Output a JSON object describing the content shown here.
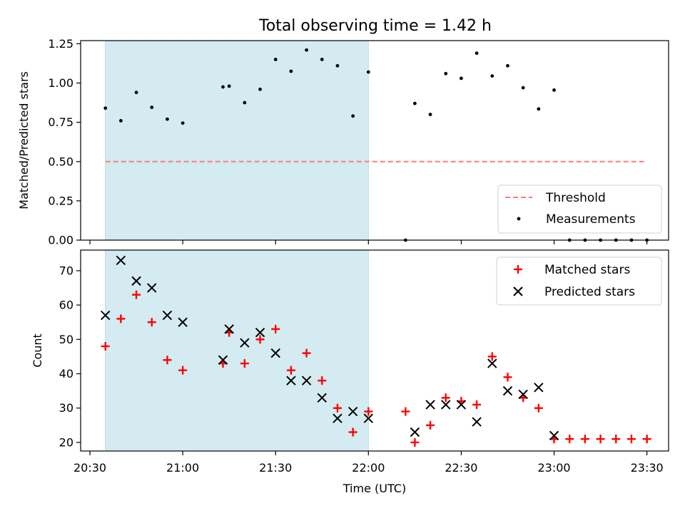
{
  "chart_data": [
    {
      "type": "scatter",
      "title": "Total observing time = 1.42 h",
      "xlabel": "",
      "ylabel": "Matched/Predicted stars",
      "xlim": [
        "20:27",
        "23:37"
      ],
      "ylim": [
        0,
        1.27
      ],
      "yticks": [
        0.0,
        0.25,
        0.5,
        0.75,
        1.0,
        1.25
      ],
      "yticklabels": [
        "0.00",
        "0.25",
        "0.50",
        "0.75",
        "1.00",
        "1.25"
      ],
      "shaded_region": {
        "x_start": "20:35",
        "x_end": "22:00",
        "color": "#d4ebf1"
      },
      "legend": {
        "position": "lower-right",
        "entries": [
          "Threshold",
          "Measurements"
        ]
      },
      "series": [
        {
          "name": "Threshold",
          "style": "dashed-line",
          "color": "#ff7b7b",
          "x": [
            "20:35",
            "23:30"
          ],
          "y": [
            0.5,
            0.5
          ]
        },
        {
          "name": "Measurements",
          "style": "dot",
          "color": "#000000",
          "x": [
            "20:35",
            "20:40",
            "20:45",
            "20:50",
            "20:55",
            "21:00",
            "21:13",
            "21:15",
            "21:20",
            "21:25",
            "21:30",
            "21:35",
            "21:40",
            "21:45",
            "21:50",
            "21:55",
            "22:00",
            "22:12",
            "22:15",
            "22:20",
            "22:25",
            "22:30",
            "22:35",
            "22:40",
            "22:45",
            "22:50",
            "22:55",
            "23:00",
            "23:05",
            "23:10",
            "23:15",
            "23:20",
            "23:25",
            "23:30"
          ],
          "y": [
            0.84,
            0.76,
            0.94,
            0.845,
            0.77,
            0.745,
            0.975,
            0.98,
            0.875,
            0.96,
            1.15,
            1.075,
            1.21,
            1.15,
            1.11,
            0.79,
            1.07,
            0.0,
            0.87,
            0.8,
            1.06,
            1.03,
            1.19,
            1.045,
            1.11,
            0.97,
            0.835,
            0.955,
            0.0,
            0.0,
            0.0,
            0.0,
            0.0,
            0.0
          ]
        }
      ]
    },
    {
      "type": "scatter",
      "title": "",
      "xlabel": "Time (UTC)",
      "ylabel": "Count",
      "xlim": [
        "20:27",
        "23:37"
      ],
      "ylim": [
        17.5,
        76
      ],
      "yticks": [
        20,
        30,
        40,
        50,
        60,
        70
      ],
      "yticklabels": [
        "20",
        "30",
        "40",
        "50",
        "60",
        "70"
      ],
      "xticks": [
        "20:30",
        "21:00",
        "21:30",
        "22:00",
        "22:30",
        "23:00",
        "23:30"
      ],
      "xticklabels": [
        "20:30",
        "21:00",
        "21:30",
        "22:00",
        "22:30",
        "23:00",
        "23:30"
      ],
      "shaded_region": {
        "x_start": "20:35",
        "x_end": "22:00",
        "color": "#d4ebf1"
      },
      "legend": {
        "position": "upper-right",
        "entries": [
          "Matched stars",
          "Predicted stars"
        ]
      },
      "series": [
        {
          "name": "Matched stars",
          "style": "plus",
          "color": "#ff0000",
          "x": [
            "20:35",
            "20:40",
            "20:45",
            "20:50",
            "20:55",
            "21:00",
            "21:13",
            "21:15",
            "21:20",
            "21:25",
            "21:30",
            "21:35",
            "21:40",
            "21:45",
            "21:50",
            "21:55",
            "22:00",
            "22:12",
            "22:15",
            "22:20",
            "22:25",
            "22:30",
            "22:35",
            "22:40",
            "22:45",
            "22:50",
            "22:55",
            "23:00",
            "23:05",
            "23:10",
            "23:15",
            "23:20",
            "23:25",
            "23:30"
          ],
          "y": [
            48,
            56,
            63,
            55,
            44,
            41,
            43,
            52,
            43,
            50,
            53,
            41,
            46,
            38,
            30,
            23,
            29,
            29,
            20,
            25,
            33,
            32,
            31,
            45,
            39,
            33,
            30,
            21,
            21,
            21,
            21,
            21,
            21,
            21
          ]
        },
        {
          "name": "Predicted stars",
          "style": "x",
          "color": "#000000",
          "x": [
            "20:35",
            "20:40",
            "20:45",
            "20:50",
            "20:55",
            "21:00",
            "21:13",
            "21:15",
            "21:20",
            "21:25",
            "21:30",
            "21:35",
            "21:40",
            "21:45",
            "21:50",
            "21:55",
            "22:00",
            "22:15",
            "22:20",
            "22:25",
            "22:30",
            "22:35",
            "22:40",
            "22:45",
            "22:50",
            "22:55",
            "23:00"
          ],
          "y": [
            57,
            73,
            67,
            65,
            57,
            55,
            44,
            53,
            49,
            52,
            46,
            38,
            38,
            33,
            27,
            29,
            27,
            23,
            31,
            31,
            31,
            26,
            43,
            35,
            34,
            36,
            22
          ]
        }
      ]
    }
  ]
}
